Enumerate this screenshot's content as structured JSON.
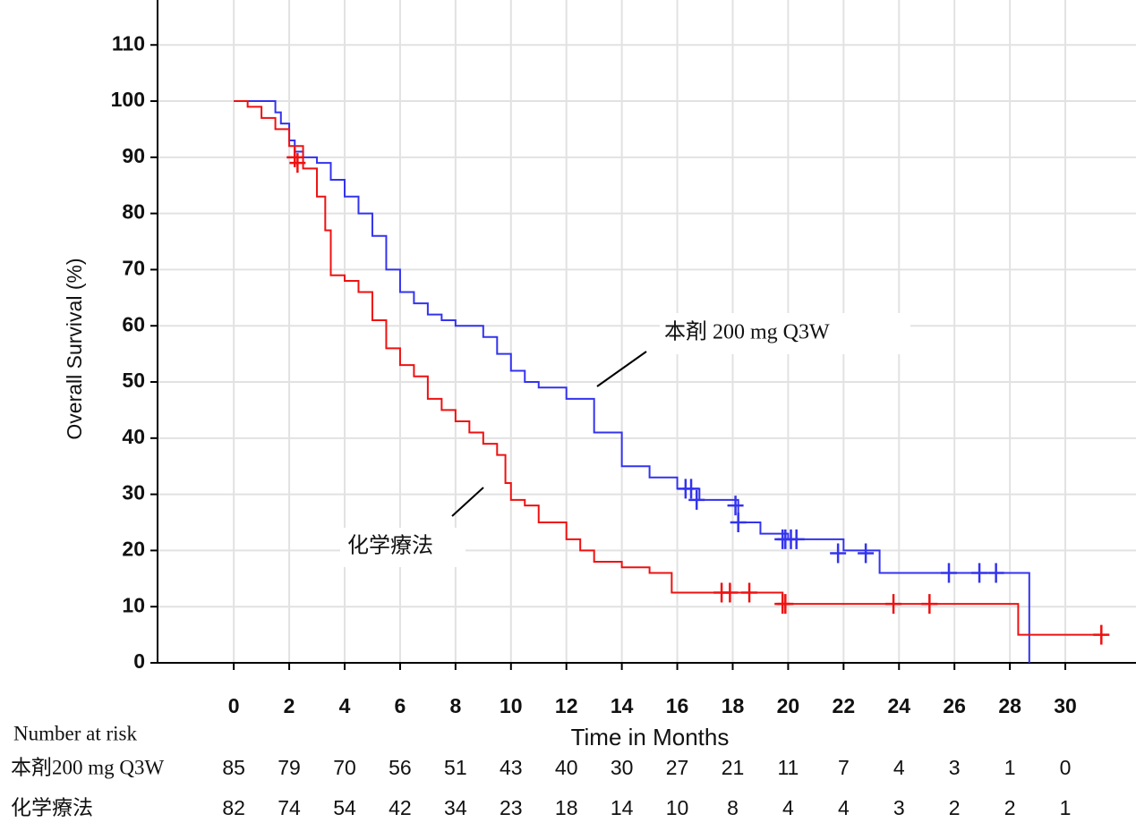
{
  "chart_data": {
    "type": "step",
    "x_label": "Time in Months",
    "y_label": "Overall Survival (%)",
    "xlim": [
      -2.75,
      32.55
    ],
    "ylim": [
      0,
      118
    ],
    "xticks": [
      0,
      2,
      4,
      6,
      8,
      10,
      12,
      14,
      16,
      18,
      20,
      22,
      24,
      26,
      28,
      30
    ],
    "yticks": [
      0,
      10,
      20,
      30,
      40,
      50,
      60,
      70,
      80,
      90,
      100,
      110
    ],
    "grid": true,
    "series": [
      {
        "name": "本剤 200 mg Q3W",
        "color": "#3333ee",
        "x": [
          0,
          1.5,
          1.7,
          2,
          2.2,
          2.5,
          3,
          3.5,
          4,
          4.5,
          5,
          5.5,
          6,
          6.5,
          7,
          7.5,
          8,
          9,
          9.5,
          10,
          10.5,
          11,
          12,
          13,
          14,
          15,
          16,
          16.8,
          18,
          18.2,
          19,
          20,
          22,
          23.3,
          28.7
        ],
        "y": [
          100,
          98,
          96,
          93,
          91,
          90,
          89,
          86,
          83,
          80,
          76,
          70,
          66,
          64,
          62,
          61,
          60,
          58,
          55,
          52,
          50,
          49,
          47,
          41,
          35,
          33,
          31,
          29,
          29,
          25,
          23,
          22,
          20,
          16,
          0
        ],
        "censor_x": [
          16.3,
          16.5,
          16.7,
          18.1,
          18.2,
          19.8,
          19.9,
          20.1,
          20.3,
          21.8,
          22.8,
          25.8,
          26.9,
          27.5
        ],
        "censor_y": [
          31,
          31,
          29,
          28,
          25,
          22,
          22,
          22,
          22,
          19.5,
          19.5,
          16,
          16,
          16
        ]
      },
      {
        "name": "化学療法",
        "color": "#ee1111",
        "x": [
          0,
          0.5,
          1,
          1.5,
          2,
          2.5,
          3,
          3.3,
          3.5,
          4,
          4.5,
          5,
          5.5,
          6,
          6.5,
          7,
          7.5,
          8,
          8.5,
          9,
          9.5,
          9.8,
          10,
          10.5,
          11,
          12,
          12.5,
          13,
          14,
          15,
          15.8,
          19.8,
          28.3,
          31.5
        ],
        "y": [
          100,
          99,
          97,
          95,
          92,
          88,
          83,
          77,
          69,
          68,
          66,
          61,
          56,
          53,
          51,
          47,
          45,
          43,
          41,
          39,
          37,
          32,
          29,
          28,
          25,
          22,
          20,
          18,
          17,
          16,
          12.5,
          10.5,
          5,
          5
        ],
        "censor_x": [
          2.2,
          2.3,
          17.6,
          17.9,
          18.6,
          19.8,
          19.9,
          23.8,
          25.1,
          31.3
        ],
        "censor_y": [
          90,
          89,
          12.5,
          12.5,
          12.5,
          10.5,
          10.5,
          10.5,
          10.5,
          5
        ]
      }
    ],
    "risk_table": {
      "title": "Number at risk",
      "rows": [
        {
          "label": "本剤200 mg Q3W",
          "values": [
            85,
            79,
            70,
            56,
            51,
            43,
            40,
            30,
            27,
            21,
            11,
            7,
            4,
            3,
            1,
            0
          ]
        },
        {
          "label": "化学療法",
          "values": [
            82,
            74,
            54,
            42,
            34,
            23,
            18,
            14,
            10,
            8,
            4,
            4,
            3,
            2,
            2,
            1
          ]
        }
      ]
    }
  }
}
